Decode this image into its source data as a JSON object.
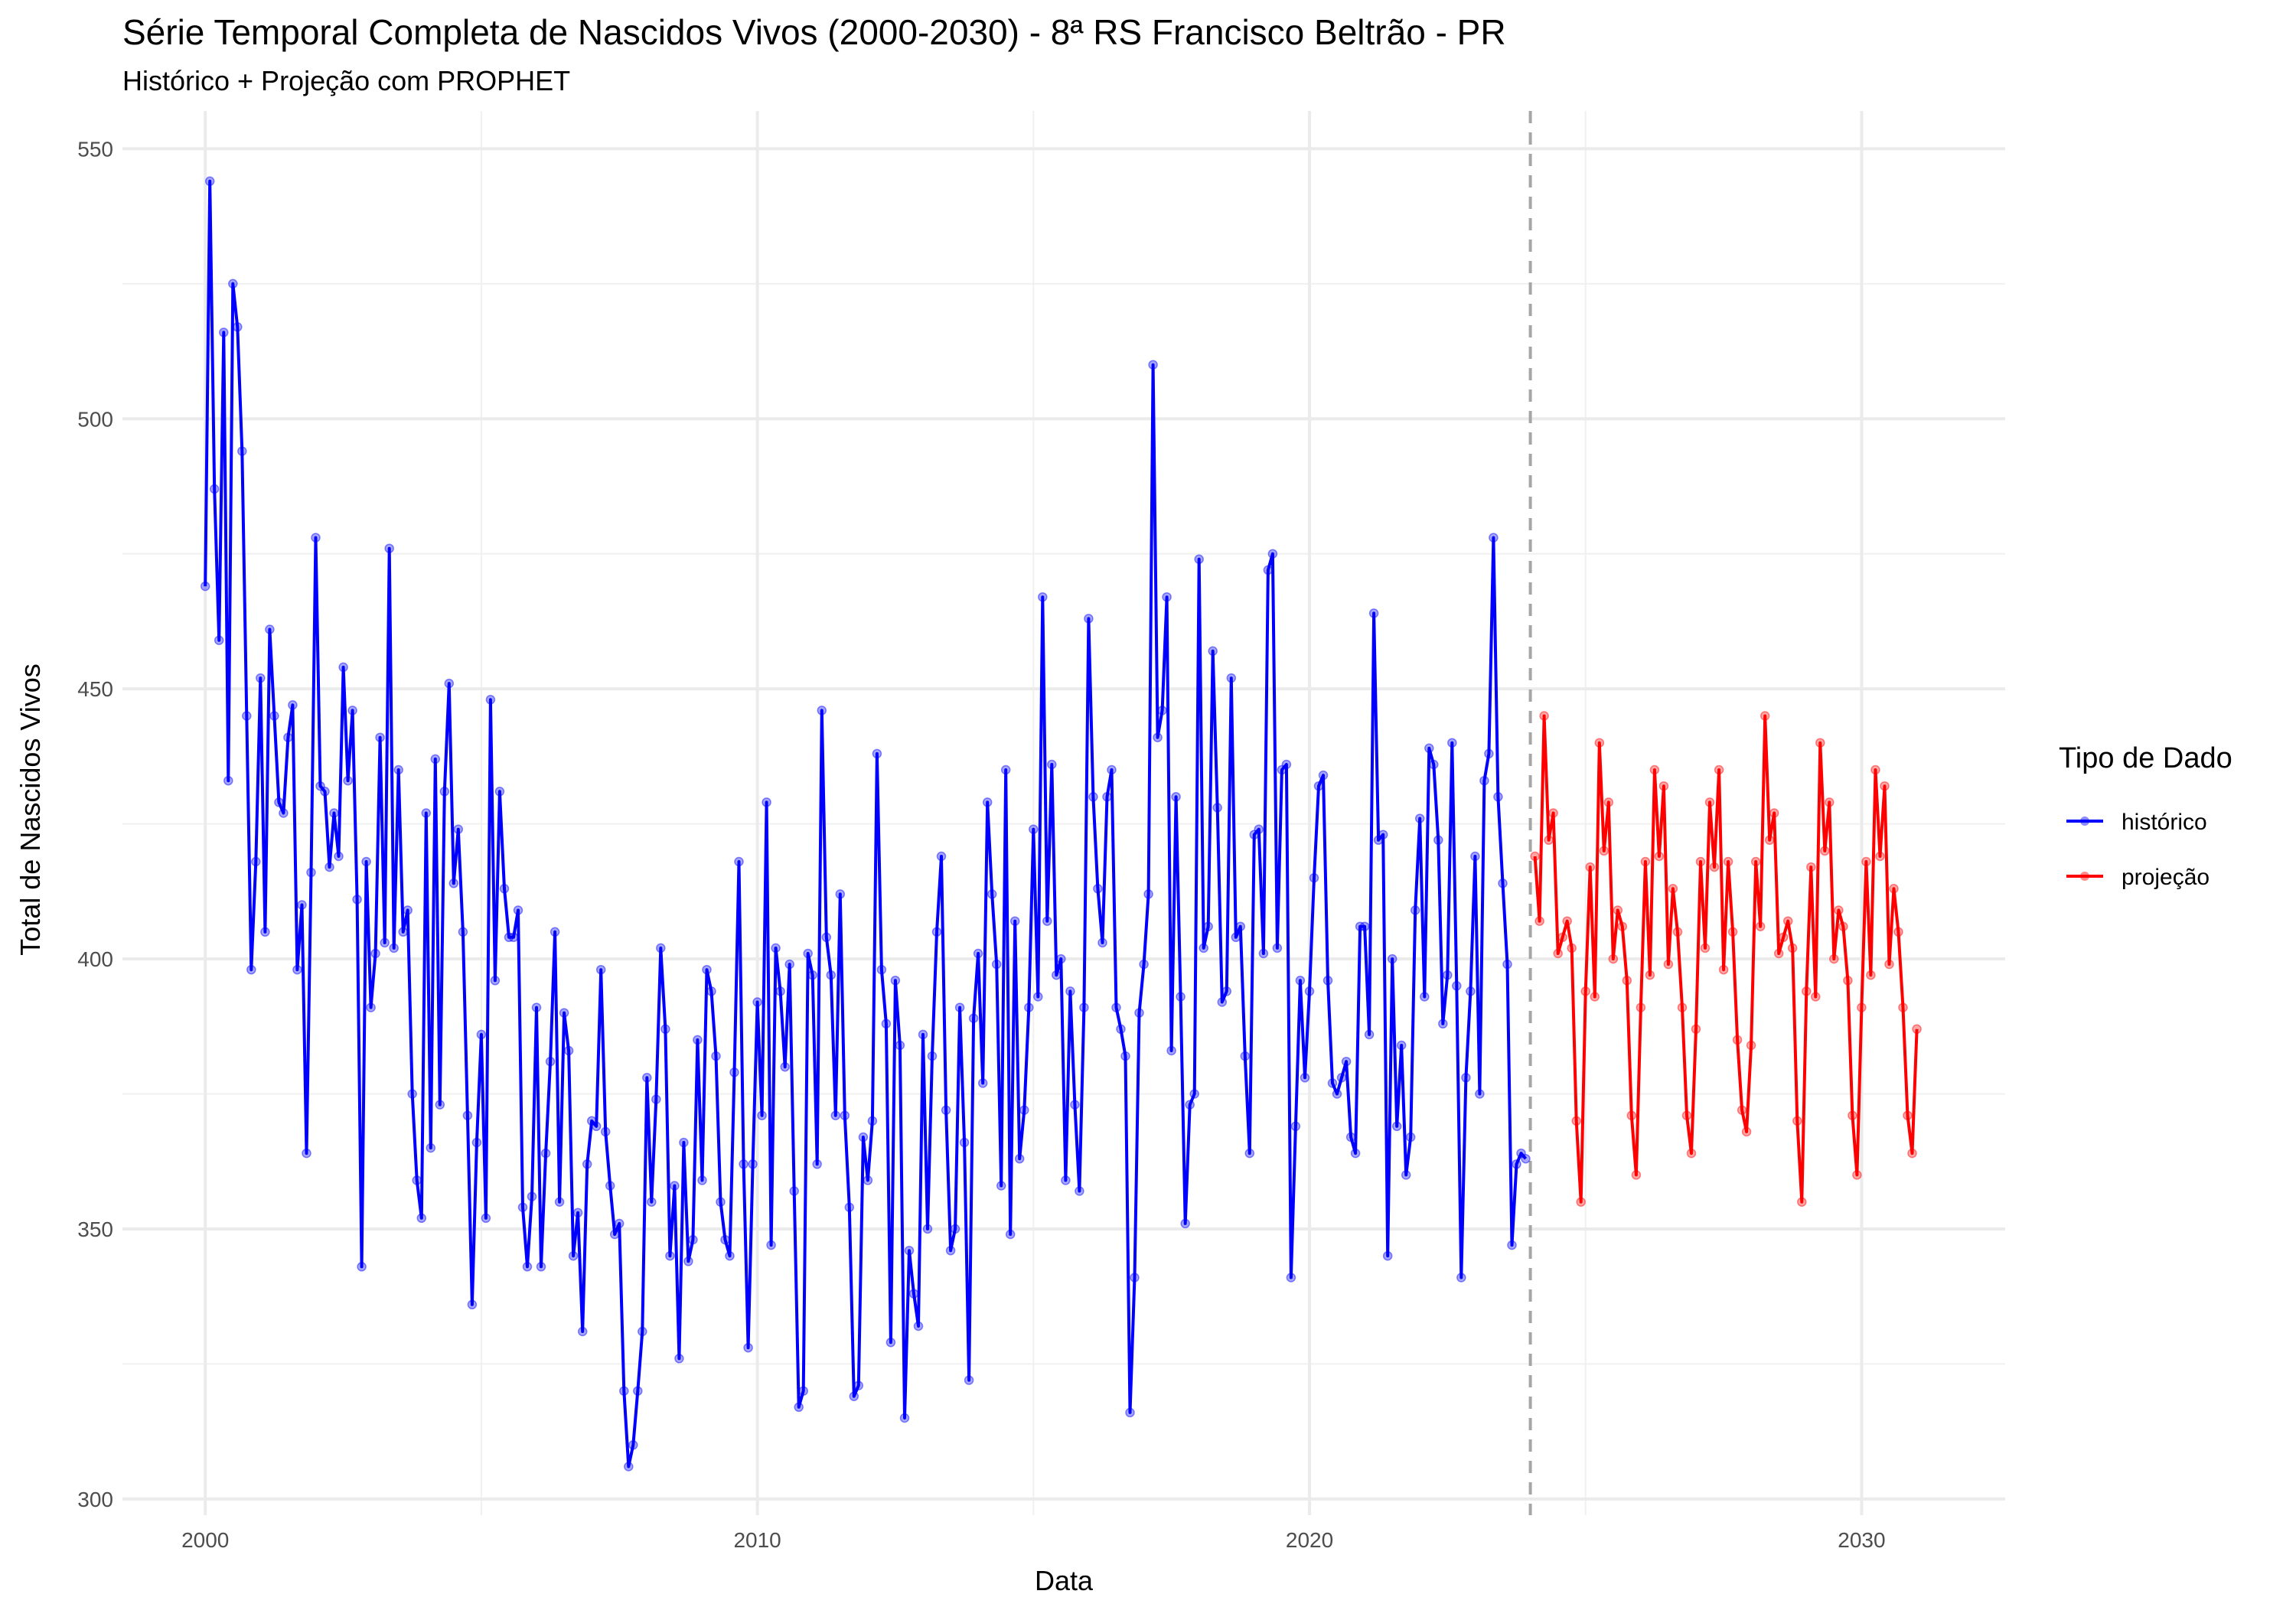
{
  "chart_data": {
    "type": "line",
    "title": "Série Temporal Completa de Nascidos Vivos (2000-2030) -  8ª RS Francisco Beltrão - PR",
    "subtitle": "Histórico + Projeção com PROPHET",
    "xlabel": "Data",
    "ylabel": "Total de Nascidos Vivos",
    "xlim": [
      1998.5,
      2032.6
    ],
    "ylim": [
      297,
      557
    ],
    "x_ticks": [
      2000,
      2010,
      2020,
      2030
    ],
    "x_tick_labels": [
      "2000",
      "2010",
      "2020",
      "2030"
    ],
    "y_ticks": [
      300,
      350,
      400,
      450,
      500,
      550
    ],
    "y_tick_labels": [
      "300",
      "350",
      "400",
      "450",
      "500",
      "550"
    ],
    "grid": true,
    "vline": {
      "x": 2024.0,
      "style": "dashed",
      "color": "#a6a6a6"
    },
    "legend": {
      "title": "Tipo de Dado",
      "position": "right"
    },
    "series": [
      {
        "name": "histórico",
        "color": "#0000ff",
        "x_start": 2000.0,
        "x_step": 0.08333,
        "values": [
          469,
          544,
          487,
          459,
          516,
          433,
          525,
          517,
          494,
          445,
          398,
          418,
          452,
          405,
          461,
          445,
          429,
          427,
          441,
          447,
          398,
          410,
          364,
          416,
          478,
          432,
          431,
          417,
          427,
          419,
          454,
          433,
          446,
          411,
          343,
          418,
          391,
          401,
          441,
          403,
          476,
          402,
          435,
          405,
          409,
          375,
          359,
          352,
          427,
          365,
          437,
          373,
          431,
          451,
          414,
          424,
          405,
          371,
          336,
          366,
          386,
          352,
          448,
          396,
          431,
          413,
          404,
          404,
          409,
          354,
          343,
          356,
          391,
          343,
          364,
          381,
          405,
          355,
          390,
          383,
          345,
          353,
          331,
          362,
          370,
          369,
          398,
          368,
          358,
          349,
          351,
          320,
          306,
          310,
          320,
          331,
          378,
          355,
          374,
          402,
          387,
          345,
          358,
          326,
          366,
          344,
          348,
          385,
          359,
          398,
          394,
          382,
          355,
          348,
          345,
          379,
          418,
          362,
          328,
          362,
          392,
          371,
          429,
          347,
          402,
          394,
          380,
          399,
          357,
          317,
          320,
          401,
          397,
          362,
          446,
          404,
          397,
          371,
          412,
          371,
          354,
          319,
          321,
          367,
          359,
          370,
          438,
          398,
          388,
          329,
          396,
          384,
          315,
          346,
          338,
          332,
          386,
          350,
          382,
          405,
          419,
          372,
          346,
          350,
          391,
          366,
          322,
          389,
          401,
          377,
          429,
          412,
          399,
          358,
          435,
          349,
          407,
          363,
          372,
          391,
          424,
          393,
          467,
          407,
          436,
          397,
          400,
          359,
          394,
          373,
          357,
          391,
          463,
          430,
          413,
          403,
          430,
          435,
          391,
          387,
          382,
          316,
          341,
          390,
          399,
          412,
          510,
          441,
          446,
          467,
          383,
          430,
          393,
          351,
          373,
          375,
          474,
          402,
          406,
          457,
          428,
          392,
          394,
          452,
          404,
          406,
          382,
          364,
          423,
          424,
          401,
          472,
          475,
          402,
          435,
          436,
          341,
          369,
          396,
          378,
          394,
          415,
          432,
          434,
          396,
          377,
          375,
          378,
          381,
          367,
          364,
          406,
          406,
          386,
          464,
          422,
          423,
          345,
          400,
          369,
          384,
          360,
          367,
          409,
          426,
          393,
          439,
          436,
          422,
          388,
          397,
          440,
          395,
          341,
          378,
          394,
          419,
          375,
          433,
          438,
          478,
          430,
          414,
          399,
          347,
          362,
          364,
          363
        ]
      },
      {
        "name": "projeção",
        "color": "#ff0000",
        "x_start": 2024.08333,
        "x_step": 0.08333,
        "values": [
          419,
          407,
          445,
          422,
          427,
          401,
          404,
          407,
          402,
          370,
          355,
          394,
          417,
          393,
          440,
          420,
          429,
          400,
          409,
          406,
          396,
          371,
          360,
          391,
          418,
          397,
          435,
          419,
          432,
          399,
          413,
          405,
          391,
          371,
          364,
          387,
          418,
          402,
          429,
          417,
          435,
          398,
          418,
          405,
          385,
          372,
          368,
          384,
          418,
          406,
          445,
          422,
          427,
          401,
          404,
          407,
          402,
          370,
          355,
          394,
          417,
          393,
          440,
          420,
          429,
          400,
          409,
          406,
          396,
          371,
          360,
          391,
          418,
          397,
          435,
          419,
          432,
          399,
          413,
          405,
          391,
          371,
          364,
          387
        ]
      }
    ]
  }
}
